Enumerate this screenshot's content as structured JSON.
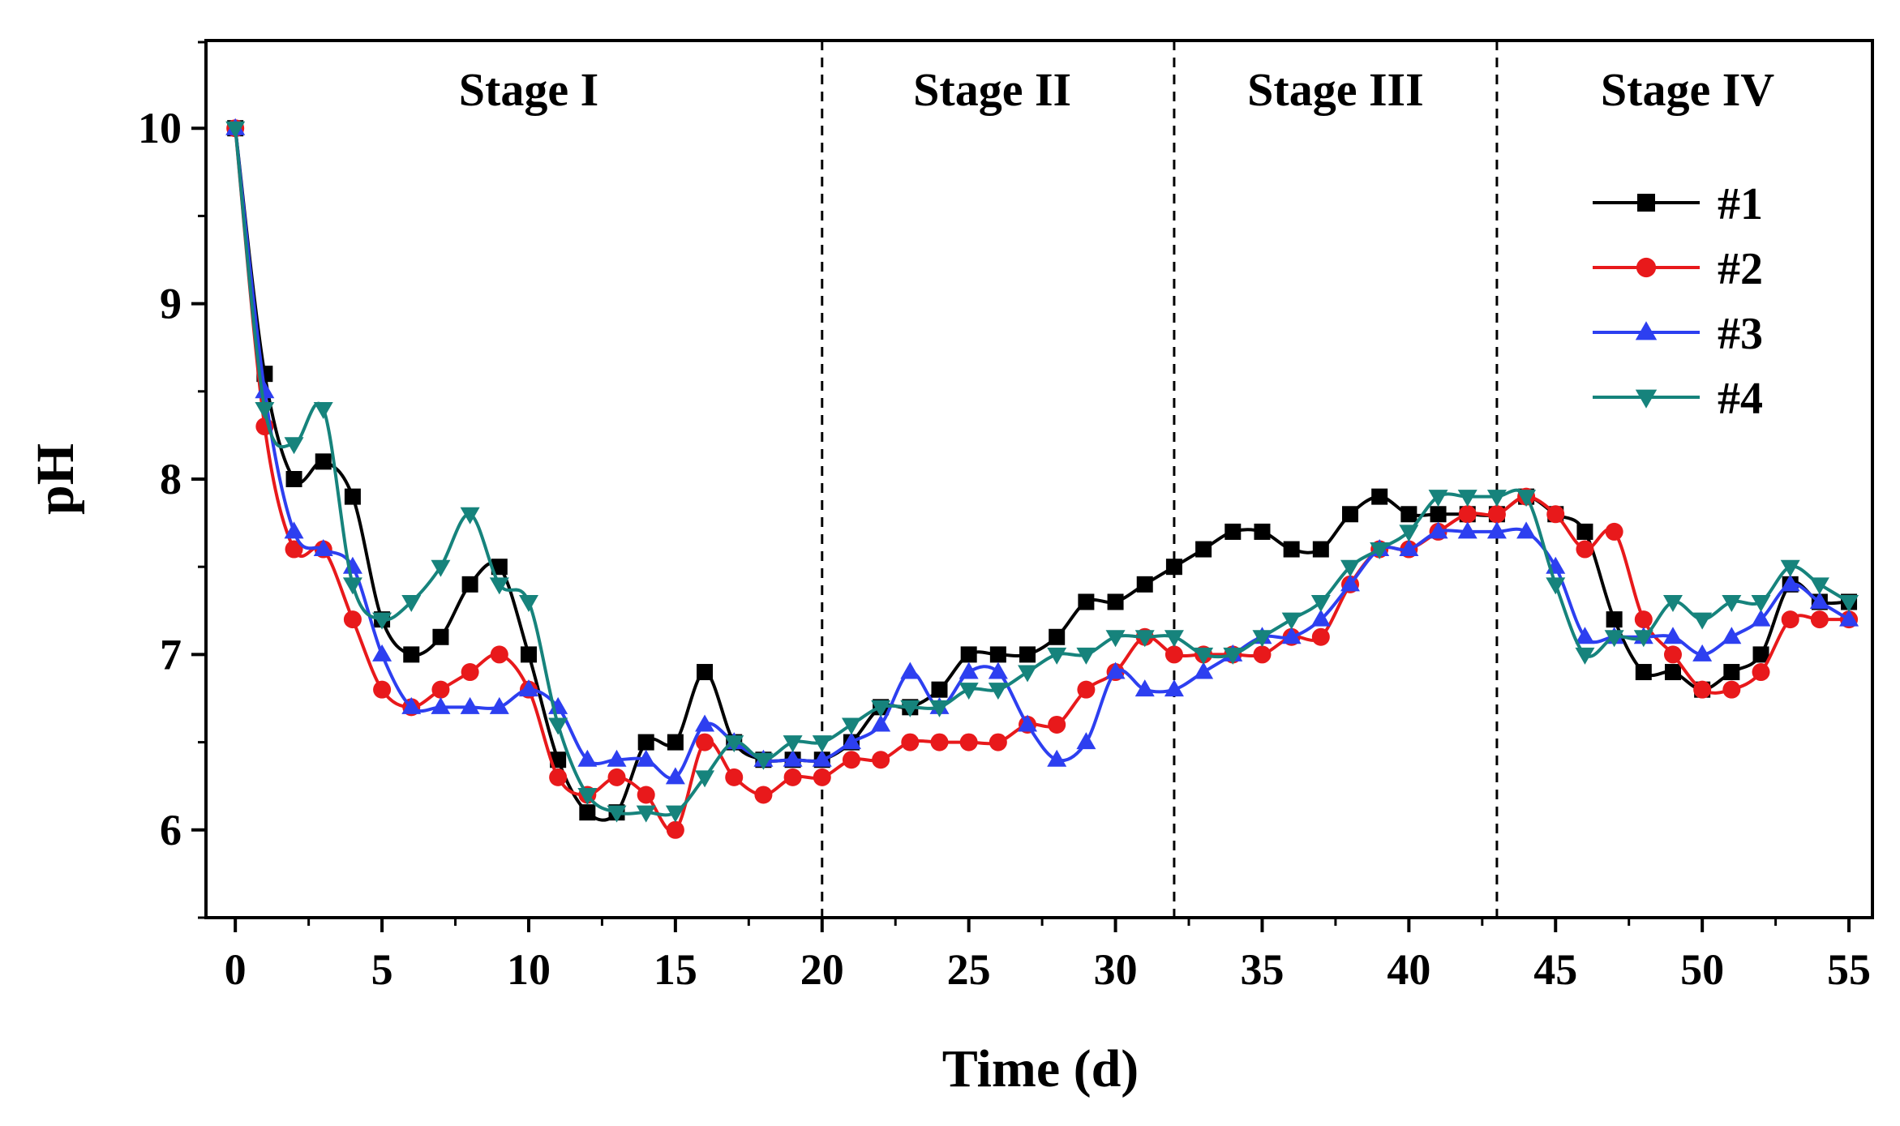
{
  "chart_data": {
    "type": "line",
    "xlabel": "Time (d)",
    "ylabel": "pH",
    "xlim": [
      -1,
      55.8
    ],
    "ylim": [
      5.5,
      10.5
    ],
    "xticks": [
      0,
      5,
      10,
      15,
      20,
      25,
      30,
      35,
      40,
      45,
      50,
      55
    ],
    "yticks": [
      6,
      7,
      8,
      9,
      10
    ],
    "stage_dividers": [
      20,
      32,
      43
    ],
    "stages": [
      {
        "label": "Stage I",
        "x": 10
      },
      {
        "label": "Stage II",
        "x": 25.8
      },
      {
        "label": "Stage III",
        "x": 37.5
      },
      {
        "label": "Stage IV",
        "x": 49.5
      }
    ],
    "legend_position": "top-right",
    "series": [
      {
        "name": "#1",
        "color": "#000000",
        "marker": "square",
        "x": [
          0,
          1,
          2,
          3,
          4,
          5,
          6,
          7,
          8,
          9,
          10,
          11,
          12,
          13,
          14,
          15,
          16,
          17,
          18,
          19,
          20,
          21,
          22,
          23,
          24,
          25,
          26,
          27,
          28,
          29,
          30,
          31,
          32,
          33,
          34,
          35,
          36,
          37,
          38,
          39,
          40,
          41,
          42,
          43,
          44,
          45,
          46,
          47,
          48,
          49,
          50,
          51,
          52,
          53,
          54,
          55
        ],
        "values": [
          10,
          8.6,
          8.0,
          8.1,
          7.9,
          7.2,
          7.0,
          7.1,
          7.4,
          7.5,
          7.0,
          6.4,
          6.1,
          6.1,
          6.5,
          6.5,
          6.9,
          6.5,
          6.4,
          6.4,
          6.4,
          6.5,
          6.7,
          6.7,
          6.8,
          7.0,
          7.0,
          7.0,
          7.1,
          7.3,
          7.3,
          7.4,
          7.5,
          7.6,
          7.7,
          7.7,
          7.6,
          7.6,
          7.8,
          7.9,
          7.8,
          7.8,
          7.8,
          7.8,
          7.9,
          7.8,
          7.7,
          7.2,
          6.9,
          6.9,
          6.8,
          6.9,
          7.0,
          7.4,
          7.3,
          7.3
        ]
      },
      {
        "name": "#2",
        "color": "#e8191b",
        "marker": "circle",
        "x": [
          0,
          1,
          2,
          3,
          4,
          5,
          6,
          7,
          8,
          9,
          10,
          11,
          12,
          13,
          14,
          15,
          16,
          17,
          18,
          19,
          20,
          21,
          22,
          23,
          24,
          25,
          26,
          27,
          28,
          29,
          30,
          31,
          32,
          33,
          34,
          35,
          36,
          37,
          38,
          39,
          40,
          41,
          42,
          43,
          44,
          45,
          46,
          47,
          48,
          49,
          50,
          51,
          52,
          53,
          54,
          55
        ],
        "values": [
          10,
          8.3,
          7.6,
          7.6,
          7.2,
          6.8,
          6.7,
          6.8,
          6.9,
          7.0,
          6.8,
          6.3,
          6.2,
          6.3,
          6.2,
          6.0,
          6.5,
          6.3,
          6.2,
          6.3,
          6.3,
          6.4,
          6.4,
          6.5,
          6.5,
          6.5,
          6.5,
          6.6,
          6.6,
          6.8,
          6.9,
          7.1,
          7.0,
          7.0,
          7.0,
          7.0,
          7.1,
          7.1,
          7.4,
          7.6,
          7.6,
          7.7,
          7.8,
          7.8,
          7.9,
          7.8,
          7.6,
          7.7,
          7.2,
          7.0,
          6.8,
          6.8,
          6.9,
          7.2,
          7.2,
          7.2
        ]
      },
      {
        "name": "#3",
        "color": "#2d3ff0",
        "marker": "triangle-up",
        "x": [
          0,
          1,
          2,
          3,
          4,
          5,
          6,
          7,
          8,
          9,
          10,
          11,
          12,
          13,
          14,
          15,
          16,
          17,
          18,
          19,
          20,
          21,
          22,
          23,
          24,
          25,
          26,
          27,
          28,
          29,
          30,
          31,
          32,
          33,
          34,
          35,
          36,
          37,
          38,
          39,
          40,
          41,
          42,
          43,
          44,
          45,
          46,
          47,
          48,
          49,
          50,
          51,
          52,
          53,
          54,
          55
        ],
        "values": [
          10,
          8.5,
          7.7,
          7.6,
          7.5,
          7.0,
          6.7,
          6.7,
          6.7,
          6.7,
          6.8,
          6.7,
          6.4,
          6.4,
          6.4,
          6.3,
          6.6,
          6.5,
          6.4,
          6.4,
          6.4,
          6.5,
          6.6,
          6.9,
          6.7,
          6.9,
          6.9,
          6.6,
          6.4,
          6.5,
          6.9,
          6.8,
          6.8,
          6.9,
          7.0,
          7.1,
          7.1,
          7.2,
          7.4,
          7.6,
          7.6,
          7.7,
          7.7,
          7.7,
          7.7,
          7.5,
          7.1,
          7.1,
          7.1,
          7.1,
          7.0,
          7.1,
          7.2,
          7.4,
          7.3,
          7.2
        ]
      },
      {
        "name": "#4",
        "color": "#16837c",
        "marker": "triangle-down",
        "x": [
          0,
          1,
          2,
          3,
          4,
          5,
          6,
          7,
          8,
          9,
          10,
          11,
          12,
          13,
          14,
          15,
          16,
          17,
          18,
          19,
          20,
          21,
          22,
          23,
          24,
          25,
          26,
          27,
          28,
          29,
          30,
          31,
          32,
          33,
          34,
          35,
          36,
          37,
          38,
          39,
          40,
          41,
          42,
          43,
          44,
          45,
          46,
          47,
          48,
          49,
          50,
          51,
          52,
          53,
          54,
          55
        ],
        "values": [
          10,
          8.4,
          8.2,
          8.4,
          7.4,
          7.2,
          7.3,
          7.5,
          7.8,
          7.4,
          7.3,
          6.6,
          6.2,
          6.1,
          6.1,
          6.1,
          6.3,
          6.5,
          6.4,
          6.5,
          6.5,
          6.6,
          6.7,
          6.7,
          6.7,
          6.8,
          6.8,
          6.9,
          7.0,
          7.0,
          7.1,
          7.1,
          7.1,
          7.0,
          7.0,
          7.1,
          7.2,
          7.3,
          7.5,
          7.6,
          7.7,
          7.9,
          7.9,
          7.9,
          7.9,
          7.4,
          7.0,
          7.1,
          7.1,
          7.3,
          7.2,
          7.3,
          7.3,
          7.5,
          7.4,
          7.3
        ]
      }
    ]
  }
}
